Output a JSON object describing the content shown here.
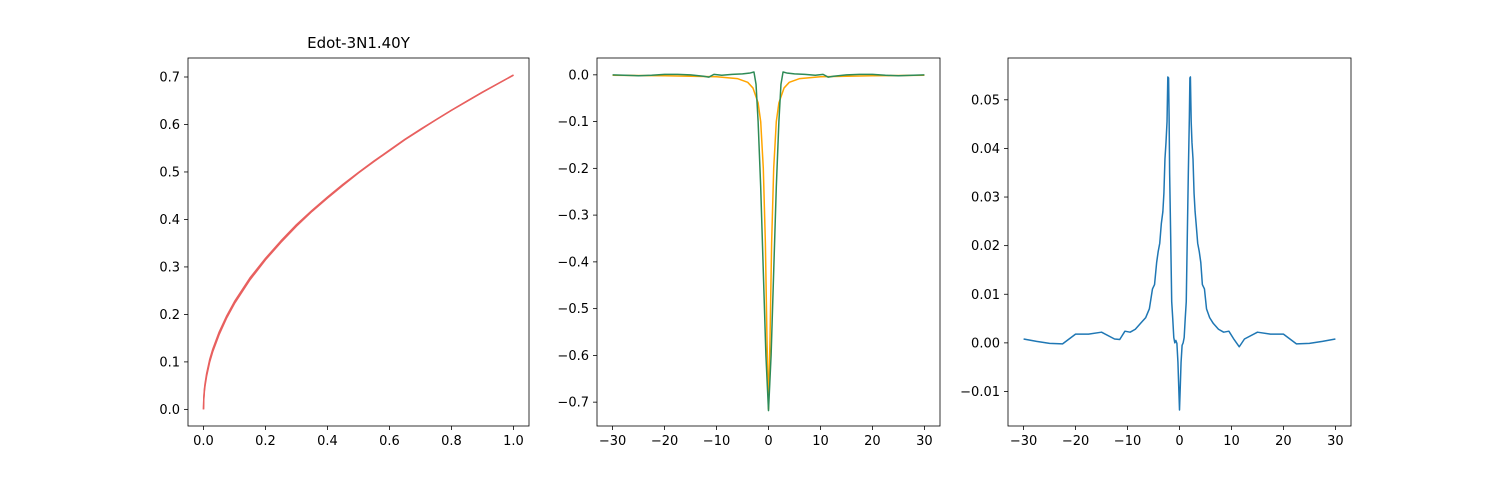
{
  "chart_data": [
    {
      "type": "line",
      "title": "Edot-3N1.40Y",
      "xlabel": "",
      "ylabel": "",
      "xlim": [
        -0.05,
        1.05
      ],
      "ylim": [
        -0.035,
        0.74
      ],
      "xticks": [
        0.0,
        0.2,
        0.4,
        0.6,
        0.8,
        1.0
      ],
      "xtick_labels": [
        "0.0",
        "0.2",
        "0.4",
        "0.6",
        "0.8",
        "1.0"
      ],
      "yticks": [
        0.0,
        0.1,
        0.2,
        0.3,
        0.4,
        0.5,
        0.6,
        0.7
      ],
      "ytick_labels": [
        "0.0",
        "0.1",
        "0.2",
        "0.3",
        "0.4",
        "0.5",
        "0.6",
        "0.7"
      ],
      "grid": false,
      "series": [
        {
          "color": "#e8605f",
          "x": [
            0.0,
            0.001,
            0.003,
            0.005,
            0.01,
            0.02,
            0.03,
            0.05,
            0.075,
            0.1,
            0.15,
            0.2,
            0.25,
            0.3,
            0.35,
            0.4,
            0.45,
            0.5,
            0.55,
            0.6,
            0.65,
            0.7,
            0.75,
            0.8,
            0.85,
            0.9,
            0.95,
            1.0
          ],
          "y": [
            0.0,
            0.022,
            0.039,
            0.05,
            0.07,
            0.1,
            0.122,
            0.157,
            0.193,
            0.223,
            0.273,
            0.315,
            0.352,
            0.386,
            0.417,
            0.445,
            0.472,
            0.498,
            0.522,
            0.545,
            0.568,
            0.589,
            0.61,
            0.63,
            0.649,
            0.668,
            0.686,
            0.704
          ]
        },
        {
          "color": "#e8605f",
          "x": [
            0.0,
            0.001,
            0.003,
            0.005,
            0.01,
            0.02,
            0.03,
            0.05,
            0.075,
            0.1,
            0.15,
            0.2,
            0.25,
            0.3,
            0.35,
            0.4,
            0.45,
            0.5,
            0.55,
            0.6,
            0.65,
            0.7,
            0.75,
            0.8,
            0.85,
            0.9,
            0.95,
            1.0
          ],
          "y": [
            0.0,
            0.025,
            0.043,
            0.054,
            0.075,
            0.105,
            0.127,
            0.162,
            0.197,
            0.227,
            0.277,
            0.318,
            0.355,
            0.389,
            0.419,
            0.447,
            0.474,
            0.499,
            0.523,
            0.546,
            0.569,
            0.59,
            0.61,
            0.63,
            0.649,
            0.668,
            0.686,
            0.704
          ]
        }
      ]
    },
    {
      "type": "line",
      "title": "",
      "xlabel": "",
      "ylabel": "",
      "xlim": [
        -33,
        33
      ],
      "ylim": [
        -0.751,
        0.036
      ],
      "xticks": [
        -30,
        -20,
        -10,
        0,
        10,
        20,
        30
      ],
      "xtick_labels": [
        "−30",
        "−20",
        "−10",
        "0",
        "10",
        "20",
        "30"
      ],
      "yticks": [
        0.0,
        -0.1,
        -0.2,
        -0.3,
        -0.4,
        -0.5,
        -0.6,
        -0.7
      ],
      "ytick_labels": [
        "0.0",
        "−0.1",
        "−0.2",
        "−0.3",
        "−0.4",
        "−0.5",
        "−0.6",
        "−0.7"
      ],
      "grid": false,
      "series": [
        {
          "color": "#ffa500",
          "x": [
            -30,
            -20,
            -10,
            -6,
            -4,
            -3,
            -2,
            -1.5,
            -1,
            -0.6,
            -0.3,
            0,
            0.3,
            0.6,
            1,
            1.5,
            2,
            3,
            4,
            6,
            10,
            20,
            30
          ],
          "y": [
            -0.001,
            -0.002,
            -0.004,
            -0.008,
            -0.016,
            -0.028,
            -0.06,
            -0.1,
            -0.2,
            -0.36,
            -0.56,
            -0.715,
            -0.56,
            -0.36,
            -0.2,
            -0.1,
            -0.06,
            -0.028,
            -0.016,
            -0.008,
            -0.004,
            -0.002,
            -0.001
          ]
        },
        {
          "color": "#2e8b57",
          "x": [
            -30,
            -25,
            -22.5,
            -20,
            -17.5,
            -15,
            -12.5,
            -11.5,
            -10.5,
            -9,
            -7,
            -5,
            -3.5,
            -2.8,
            -2.4,
            -2,
            -1.5,
            -1,
            -0.5,
            0,
            0.5,
            1,
            1.5,
            2,
            2.4,
            2.8,
            3.5,
            5,
            7,
            9,
            10.5,
            11.5,
            12.5,
            15,
            17.5,
            20,
            22.5,
            25,
            30
          ],
          "y": [
            0.0,
            -0.002,
            -0.001,
            0.001,
            0.001,
            0.0,
            -0.003,
            -0.005,
            0.001,
            -0.001,
            0.001,
            0.002,
            0.004,
            0.006,
            -0.02,
            -0.1,
            -0.24,
            -0.42,
            -0.6,
            -0.718,
            -0.6,
            -0.42,
            -0.24,
            -0.1,
            -0.02,
            0.006,
            0.004,
            0.002,
            0.001,
            -0.001,
            0.001,
            -0.005,
            -0.003,
            0.0,
            0.001,
            0.001,
            -0.001,
            -0.002,
            0.0
          ]
        }
      ]
    },
    {
      "type": "line",
      "title": "",
      "xlabel": "",
      "ylabel": "",
      "xlim": [
        -33,
        33
      ],
      "ylim": [
        -0.0171,
        0.0586
      ],
      "xticks": [
        -30,
        -20,
        -10,
        0,
        10,
        20,
        30
      ],
      "xtick_labels": [
        "−30",
        "−20",
        "−10",
        "0",
        "10",
        "20",
        "30"
      ],
      "yticks": [
        -0.01,
        0.0,
        0.01,
        0.02,
        0.03,
        0.04,
        0.05
      ],
      "ytick_labels": [
        "−0.01",
        "0.00",
        "0.01",
        "0.02",
        "0.03",
        "0.04",
        "0.05"
      ],
      "grid": false,
      "series": [
        {
          "color": "#1f77b4",
          "x": [
            -30,
            -27.5,
            -25,
            -22.5,
            -20,
            -17.5,
            -15,
            -12.5,
            -11.5,
            -10.5,
            -9.5,
            -8.5,
            -7.5,
            -6.5,
            -5.8,
            -5.2,
            -4.8,
            -4.4,
            -4.1,
            -3.8,
            -3.5,
            -3.2,
            -3.0,
            -2.8,
            -2.6,
            -2.4,
            -2.25,
            -2.1,
            -2.0,
            -1.9,
            -1.7,
            -1.5,
            -1.3,
            -1.1,
            -0.9,
            -0.7,
            -0.5,
            -0.3,
            -0.15,
            0.0,
            0.15,
            0.3,
            0.5,
            0.7,
            0.9,
            1.1,
            1.3,
            1.5,
            1.7,
            1.9,
            2.0,
            2.1,
            2.25,
            2.4,
            2.6,
            2.8,
            3.0,
            3.2,
            3.5,
            3.8,
            4.1,
            4.4,
            4.8,
            5.2,
            5.8,
            6.5,
            7.5,
            8.5,
            9.5,
            10.5,
            11.5,
            12.5,
            15,
            17.5,
            20,
            22.5,
            25,
            27.5,
            30
          ],
          "y": [
            0.0008,
            0.0003,
            -0.0001,
            -0.0002,
            0.0018,
            0.0018,
            0.0022,
            0.0008,
            0.0007,
            0.0024,
            0.0022,
            0.0028,
            0.004,
            0.0052,
            0.007,
            0.0111,
            0.012,
            0.0165,
            0.0188,
            0.0205,
            0.0245,
            0.027,
            0.0308,
            0.0378,
            0.0412,
            0.0455,
            0.0547,
            0.0545,
            0.0465,
            0.035,
            0.022,
            0.0085,
            0.005,
            0.0011,
            0.0,
            0.0005,
            -0.0001,
            -0.004,
            -0.009,
            -0.0138,
            -0.009,
            -0.004,
            -0.0005,
            0.0,
            0.0011,
            0.005,
            0.0085,
            0.022,
            0.035,
            0.0465,
            0.0545,
            0.0547,
            0.0455,
            0.0412,
            0.0378,
            0.0308,
            0.027,
            0.0245,
            0.0205,
            0.0188,
            0.0165,
            0.012,
            0.0111,
            0.007,
            0.0052,
            0.004,
            0.0028,
            0.0022,
            0.0024,
            0.0007,
            -0.0008,
            0.0008,
            0.0022,
            0.0018,
            0.0018,
            -0.0002,
            -0.0001,
            0.0003,
            0.0008
          ]
        }
      ]
    }
  ]
}
